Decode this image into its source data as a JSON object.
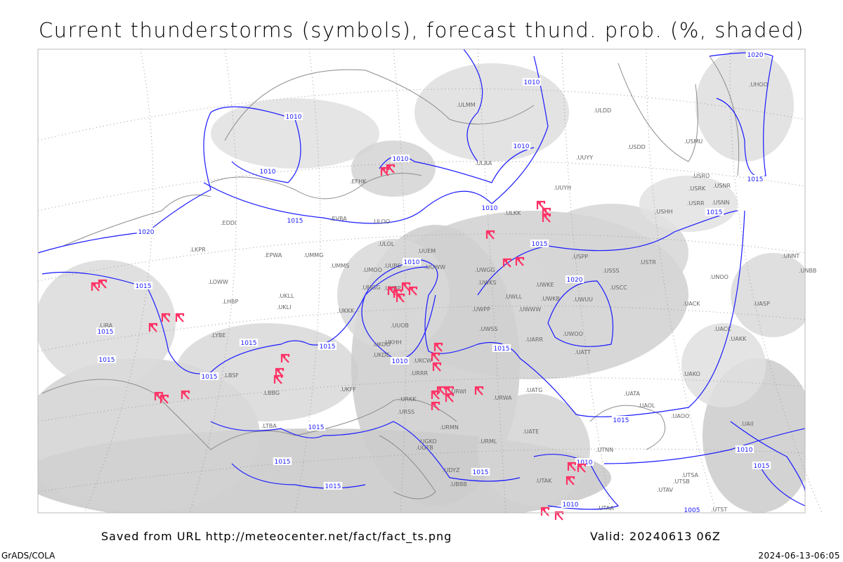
{
  "title": "Current thunderstorms (symbols), forecast thund. prob. (%, shaded)",
  "footer": {
    "saved": "Saved from URL http://meteocenter.net/fact/fact_ts.png",
    "valid": "Valid: 20240613 06Z",
    "software": "GrADS/COLA",
    "timestamp": "2024-06-13-06:05"
  },
  "colors": {
    "isobar": "#1a1aff",
    "thunderstorm_symbol": "#ff3366",
    "shading": "#cfcfcf",
    "coastline": "#8c8c8c"
  },
  "icons": {
    "thunderstorm": "thunderstorm-symbol"
  },
  "isobar_labels": [
    "1010",
    "1010",
    "1010",
    "1010",
    "1010",
    "1010",
    "1015",
    "1015",
    "1015",
    "1020",
    "1020",
    "1015",
    "1015",
    "1015",
    "1015",
    "1010",
    "1015",
    "1020",
    "1015",
    "1015",
    "1015",
    "1015",
    "1015",
    "1015",
    "1015",
    "1010",
    "1015",
    "1015",
    "1010",
    "1010",
    "1005",
    "1010"
  ],
  "stations": [
    "ULMM",
    "ULOO",
    "ULOL",
    "UUEM",
    "UUWW",
    "UUBS",
    "UMOO",
    "UMGG",
    "UUBP",
    "UUOB",
    "UKHH",
    "UKOO",
    "UKDE",
    "UKCW",
    "URRR",
    "UWGG",
    "UWKS",
    "UWKE",
    "UWKB",
    "UWLL",
    "UWPP",
    "UWWW",
    "UWSS",
    "UARR",
    "UWOO",
    "UATT",
    "USSS",
    "USCC",
    "USPP",
    "UATG",
    "UATA",
    "UAOL",
    "UAOO",
    "UACC",
    "UAKK",
    "UAKO",
    "UASP",
    "UACK",
    "UNBB",
    "UNNT",
    "UNOO",
    "USTR",
    "USHH",
    "USRR",
    "USNN",
    "USRO",
    "USRK",
    "USNR",
    "USMU",
    "USDD",
    "ULDD",
    "UUYY",
    "UUYH",
    "ULKK",
    "ULAA",
    "EFHK",
    "EVRA",
    "EDDI",
    "EPWA",
    "UMMG",
    "UMMS",
    "UKLL",
    "UKLI",
    "UKKK",
    "LHBP",
    "LOWW",
    "LKPR",
    "LYBE",
    "LBSF",
    "LBBG",
    "LTBA",
    "UGTB",
    "UBBB",
    "UTAA",
    "UTAK",
    "UTNN",
    "UTSA",
    "UTAV",
    "UTST",
    "UATE",
    "UKFF",
    "URKK",
    "URSS",
    "URWI",
    "URWA",
    "URMN",
    "URML",
    "UGKO",
    "UDYZ",
    "LIRA",
    "UWUU",
    "UHOO",
    "UAII",
    "UTSB"
  ]
}
